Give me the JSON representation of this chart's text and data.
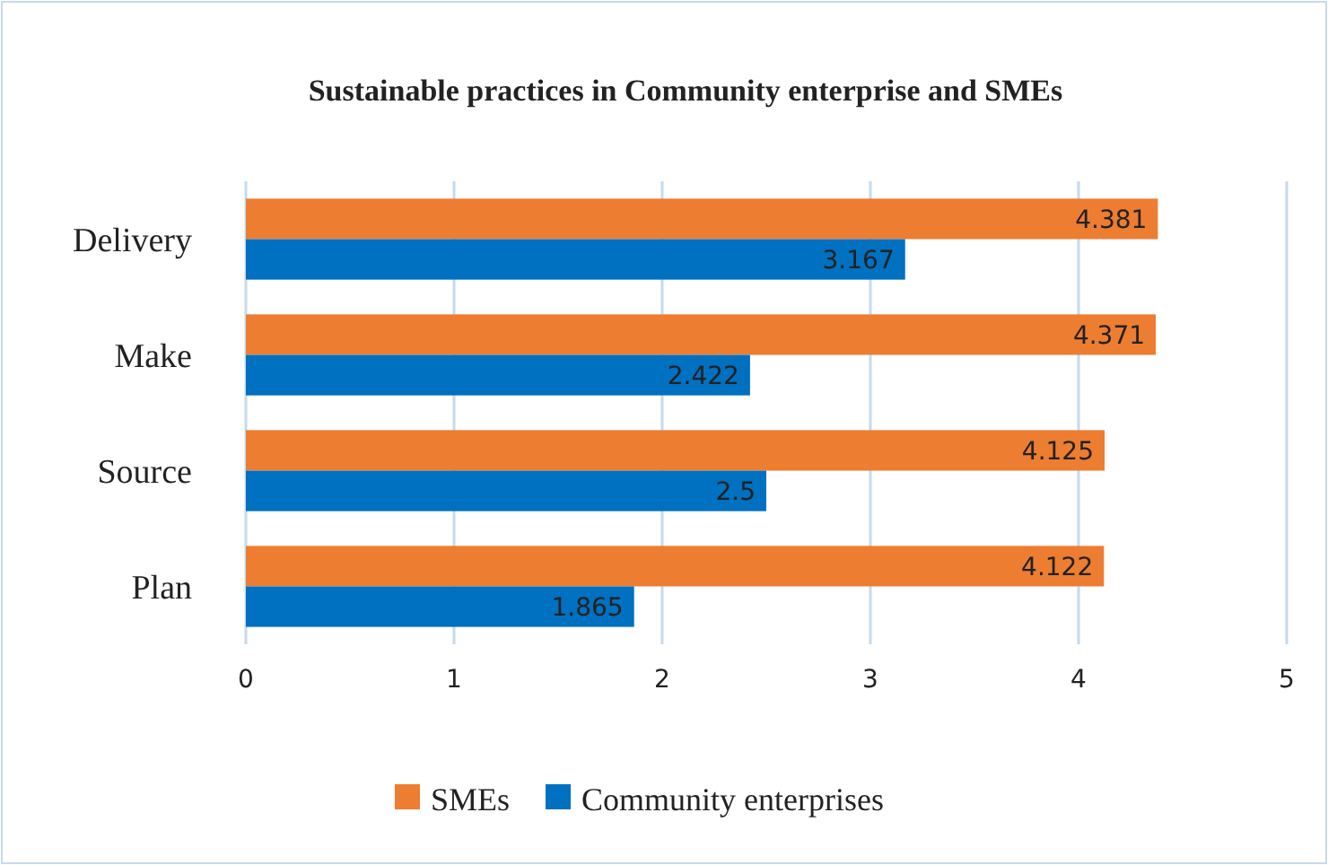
{
  "chart_data": {
    "type": "bar",
    "orientation": "horizontal",
    "title": "Sustainable practices in Community enterprise and SMEs",
    "categories": [
      "Delivery",
      "Make",
      "Source",
      "Plan"
    ],
    "series": [
      {
        "name": "SMEs",
        "color": "#ed7d31",
        "values": [
          4.381,
          4.371,
          4.125,
          4.122
        ]
      },
      {
        "name": "Community enterprises",
        "color": "#0070c0",
        "values": [
          3.167,
          2.422,
          2.5,
          1.865
        ]
      }
    ],
    "xlim": [
      0,
      5
    ],
    "xticks": [
      0,
      1,
      2,
      3,
      4,
      5
    ],
    "grid": "x",
    "legend": "bottom",
    "data_labels": true
  }
}
